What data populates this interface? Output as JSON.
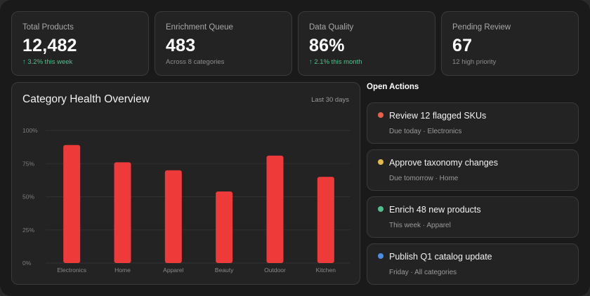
{
  "stats": [
    {
      "label": "Total Products",
      "value": "12,482",
      "sub": "↑ 3.2% this week",
      "trend": "up"
    },
    {
      "label": "Enrichment Queue",
      "value": "483",
      "sub": "Across 8 categories",
      "trend": "none"
    },
    {
      "label": "Data Quality",
      "value": "86%",
      "sub": "↑ 2.1% this month",
      "trend": "up"
    },
    {
      "label": "Pending Review",
      "value": "67",
      "sub": "12 high priority",
      "trend": "none"
    }
  ],
  "chart": {
    "title": "Category Health Overview",
    "range": "Last 30 days"
  },
  "chart_data": {
    "type": "bar",
    "title": "Category Health Overview",
    "categories": [
      "Electronics",
      "Home",
      "Apparel",
      "Beauty",
      "Outdoor",
      "Kitchen"
    ],
    "values": [
      89,
      76,
      70,
      54,
      81,
      65
    ],
    "yticks": [
      "100%",
      "75%",
      "50%",
      "25%",
      "0%"
    ],
    "ylim": [
      0,
      100
    ],
    "grid": true,
    "xlabel": "",
    "ylabel": "",
    "color": "#ef3a3a"
  },
  "actions": {
    "title": "Open Actions",
    "items": [
      {
        "title": "Review 12 flagged SKUs",
        "meta": "Due today · Electronics",
        "color": "#e8604a"
      },
      {
        "title": "Approve taxonomy changes",
        "meta": "Due tomorrow · Home",
        "color": "#e6b84a"
      },
      {
        "title": "Enrich 48 new products",
        "meta": "This week · Apparel",
        "color": "#4fc08d"
      },
      {
        "title": "Publish Q1 catalog update",
        "meta": "Friday · All categories",
        "color": "#4a90e2"
      }
    ]
  }
}
